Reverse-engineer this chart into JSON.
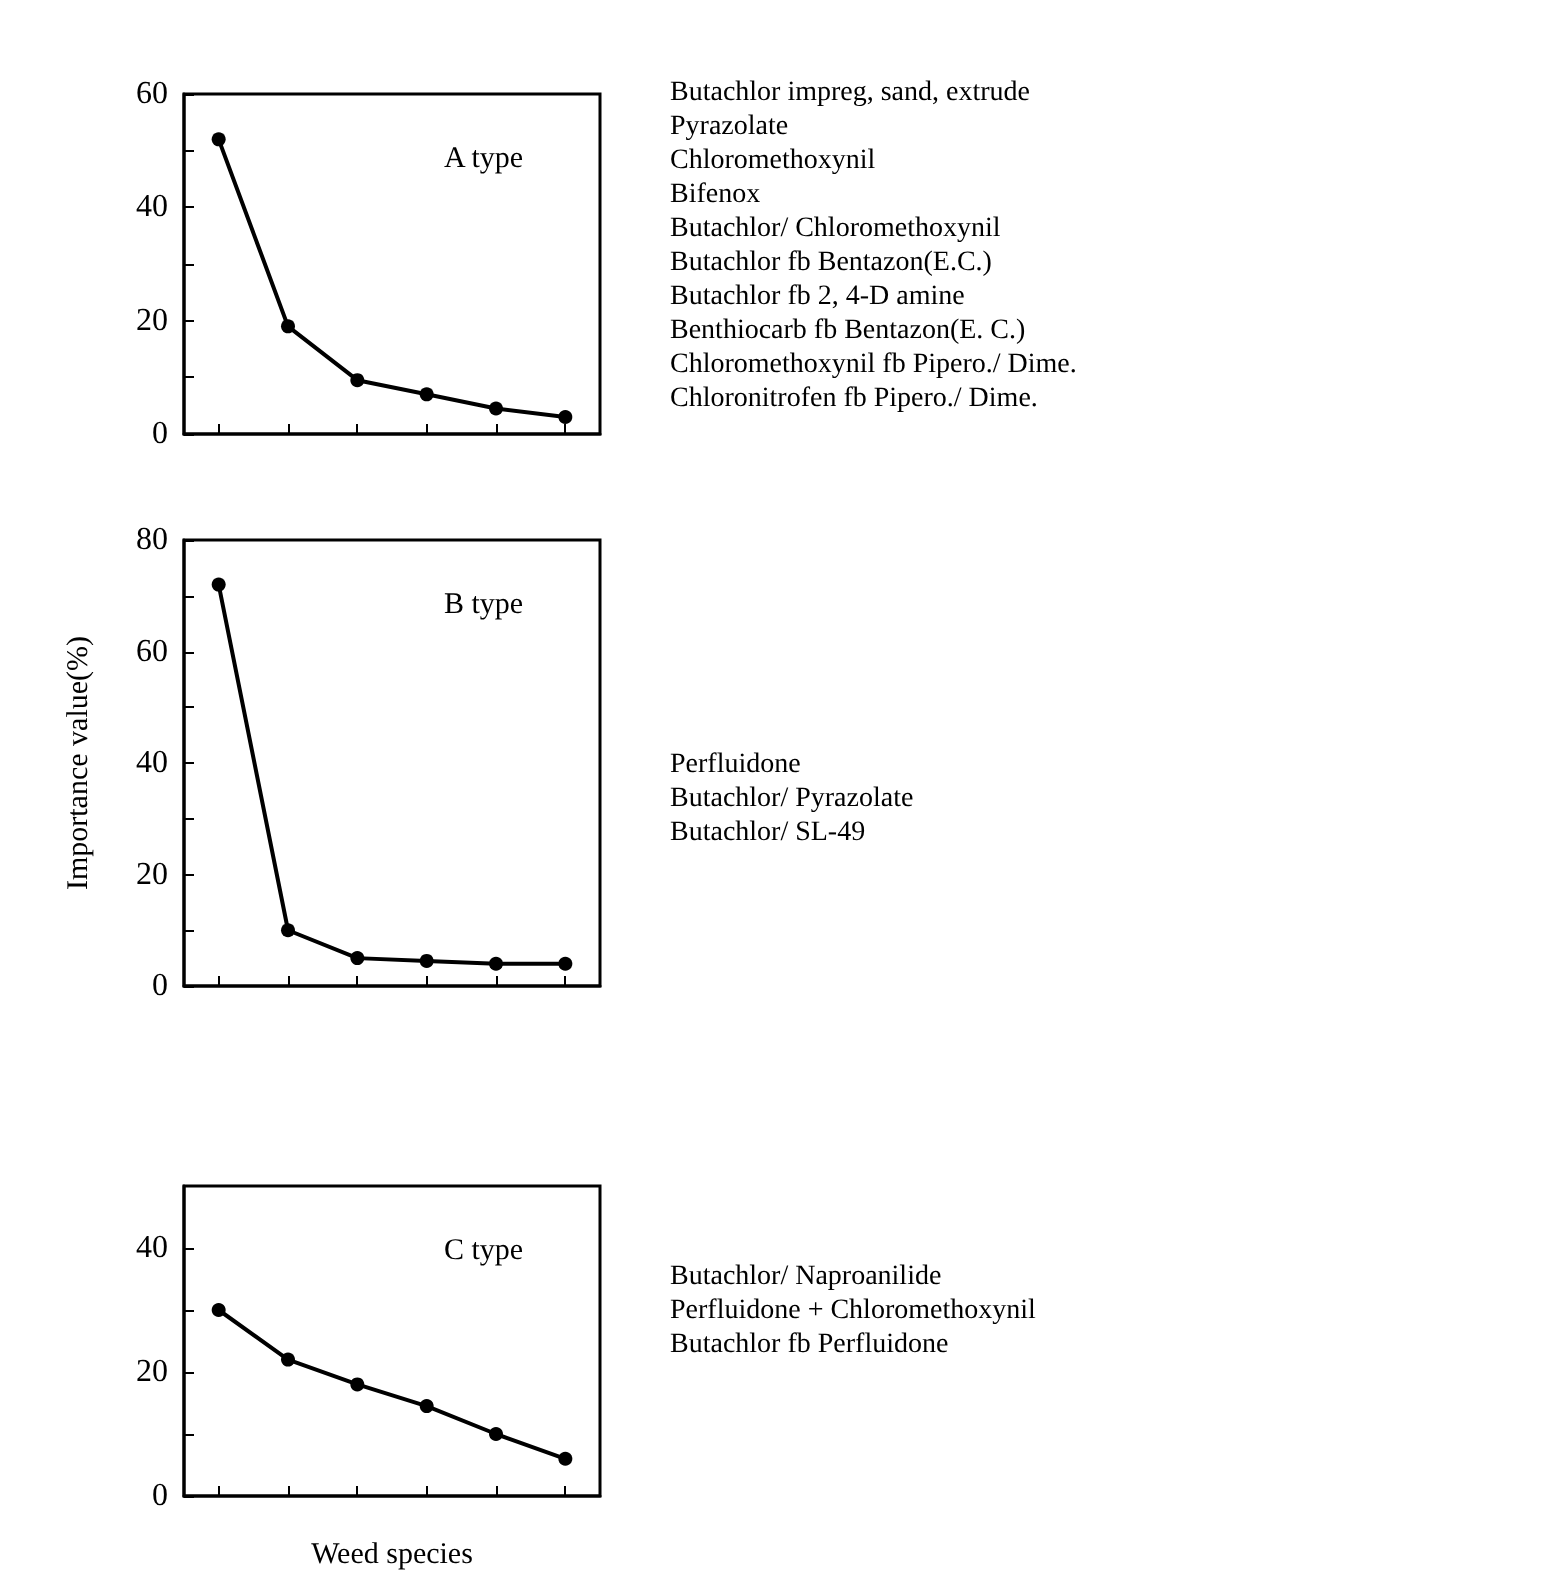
{
  "chart_data": [
    {
      "type": "line",
      "categories": [
        null,
        null,
        null,
        null,
        null,
        null
      ],
      "series": [
        {
          "color": "#000000",
          "values": [
            52,
            19,
            9.5,
            7,
            4.5,
            3
          ]
        }
      ],
      "ylim": [
        0,
        60
      ],
      "yticks": [
        0,
        {
          "value": 10,
          "label": null
        },
        20,
        {
          "value": 30,
          "label": null
        },
        40,
        {
          "value": 50,
          "label": null
        },
        60
      ],
      "marker": "circle",
      "line_style": "solid",
      "grid": false,
      "annotations": [
        "A type",
        "Butachlor impreg, sand, extrude",
        "Pyrazolate",
        "Chloromethoxynil",
        "Bifenox",
        "Butachlor/ Chloromethoxynil",
        "Butachlor fb Bentazon(E.C.)",
        "Butachlor fb 2, 4-D amine",
        "Benthiocarb fb Bentazon(E. C.)",
        "Chloromethoxynil fb Pipero./ Dime.",
        "Chloronitrofen fb Pipero./ Dime."
      ]
    },
    {
      "type": "line",
      "ylabel": "Importance value(%)",
      "categories": [
        null,
        null,
        null,
        null,
        null,
        null
      ],
      "series": [
        {
          "color": "#000000",
          "values": [
            72,
            10,
            5,
            4.5,
            4,
            4
          ]
        }
      ],
      "ylim": [
        0,
        80
      ],
      "yticks": [
        0,
        {
          "value": 10,
          "label": null
        },
        20,
        {
          "value": 30,
          "label": null
        },
        40,
        {
          "value": 50,
          "label": null
        },
        60,
        {
          "value": 70,
          "label": null
        },
        80
      ],
      "marker": "circle",
      "line_style": "solid",
      "grid": false,
      "annotations": [
        "B type",
        "Perfluidone",
        "Butachlor/ Pyrazolate",
        "Butachlor/ SL-49"
      ]
    },
    {
      "type": "line",
      "xlabel": "Weed species",
      "categories": [
        null,
        null,
        null,
        null,
        null,
        null
      ],
      "series": [
        {
          "color": "#000000",
          "values": [
            30,
            22,
            18,
            14.5,
            10,
            6
          ]
        }
      ],
      "ylim": [
        0,
        50
      ],
      "yticks": [
        0,
        {
          "value": 10,
          "label": null
        },
        20,
        {
          "value": 30,
          "label": null
        },
        40
      ],
      "marker": "circle",
      "line_style": "solid",
      "grid": false,
      "annotations": [
        "C type",
        "Butachlor/ Naproanilide",
        "Perfluidone + Chloromethoxynil",
        "Butachlor fb Perfluidone"
      ]
    }
  ]
}
